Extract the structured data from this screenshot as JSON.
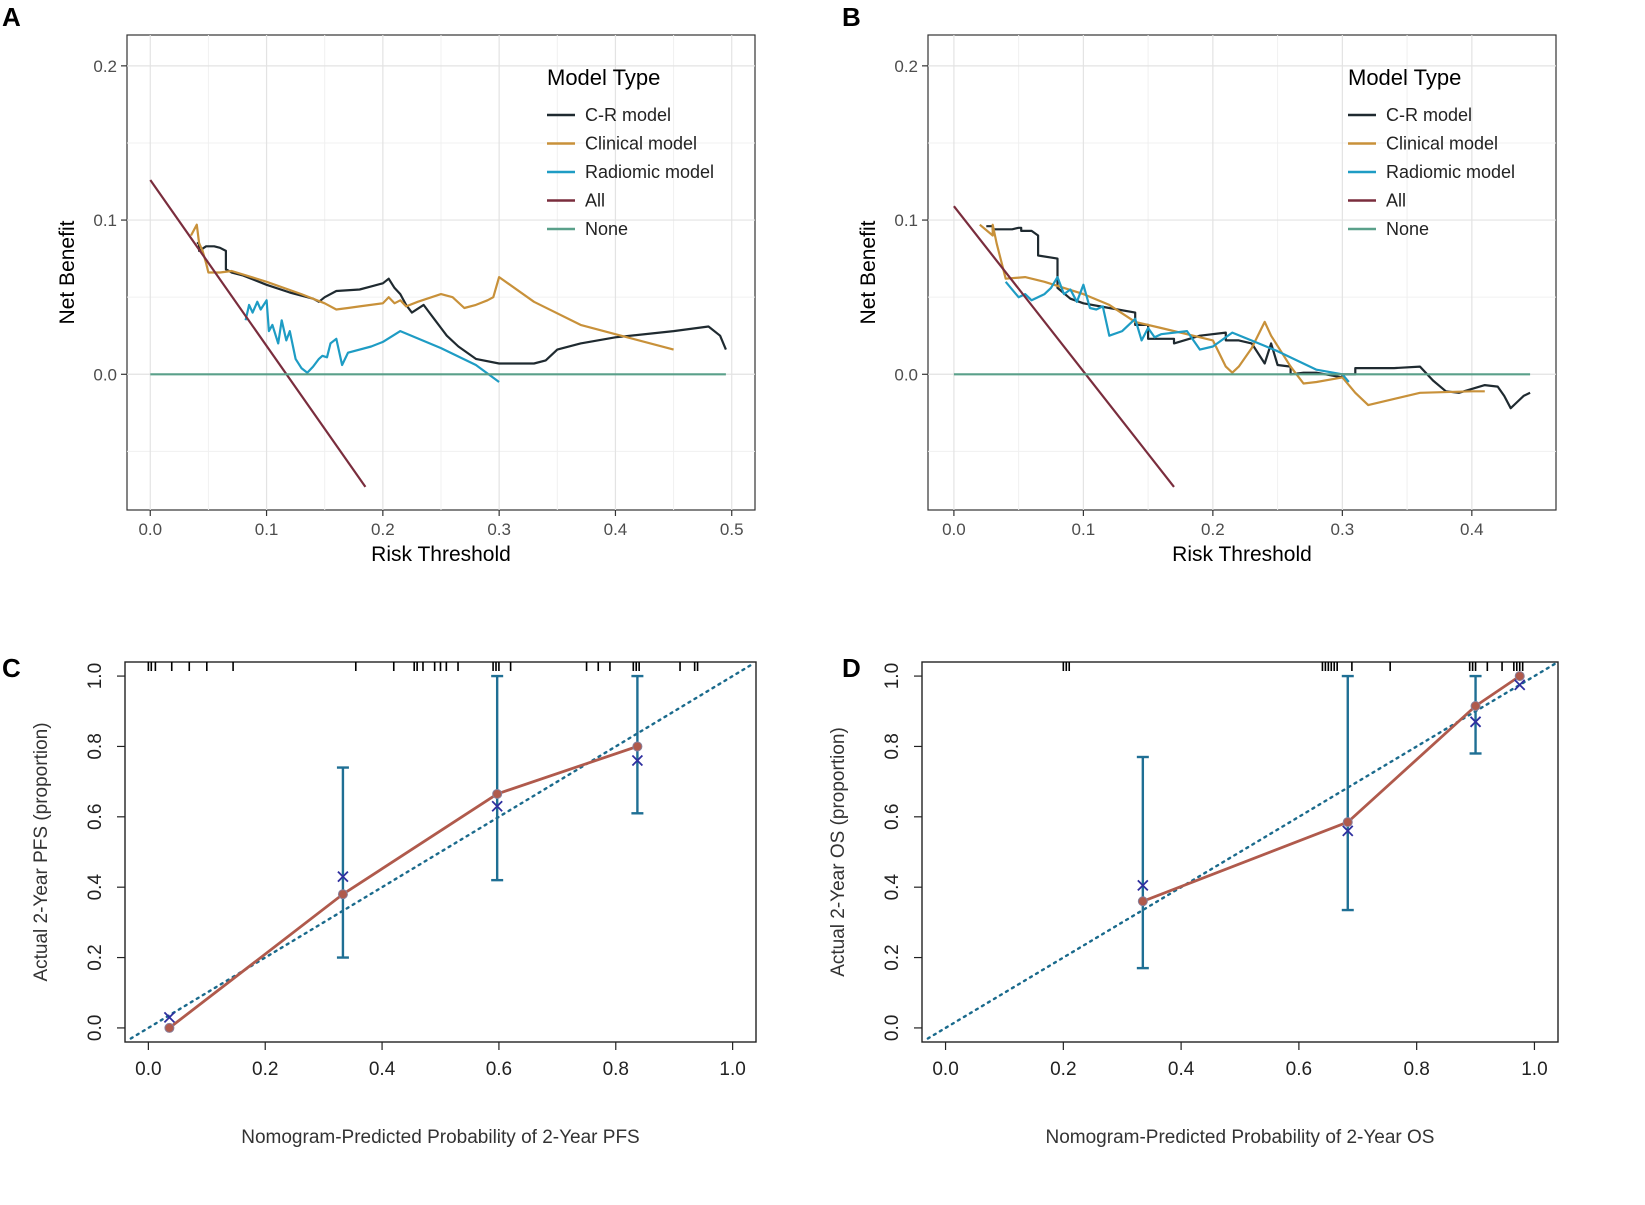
{
  "chart_data": [
    {
      "panel": "A",
      "type": "line",
      "kind": "dca",
      "xlabel": "Risk Threshold",
      "ylabel": "Net Benefit",
      "xlim": [
        -0.02,
        0.52
      ],
      "ylim": [
        -0.088,
        0.22
      ],
      "xticks": [
        0.0,
        0.1,
        0.2,
        0.3,
        0.4,
        0.5
      ],
      "xtick_labels": [
        "0.0",
        "0.1",
        "0.2",
        "0.3",
        "0.4",
        "0.5"
      ],
      "yticks": [
        0.0,
        0.1,
        0.2
      ],
      "ytick_labels": [
        "0.0",
        "0.1",
        "0.2"
      ],
      "legend_title": "Model Type",
      "legend_position": "top-right",
      "series": [
        {
          "name": "C-R model",
          "color": "#1f2a30",
          "x": [
            0.04,
            0.042,
            0.042,
            0.048,
            0.055,
            0.06,
            0.065,
            0.065,
            0.07,
            0.08,
            0.1,
            0.12,
            0.14,
            0.145,
            0.15,
            0.16,
            0.18,
            0.19,
            0.2,
            0.205,
            0.21,
            0.215,
            0.22,
            0.225,
            0.235,
            0.24,
            0.245,
            0.25,
            0.255,
            0.265,
            0.28,
            0.3,
            0.33,
            0.34,
            0.35,
            0.37,
            0.4,
            0.45,
            0.48,
            0.49,
            0.495
          ],
          "y": [
            0.085,
            0.085,
            0.08,
            0.083,
            0.083,
            0.082,
            0.08,
            0.068,
            0.066,
            0.064,
            0.058,
            0.053,
            0.049,
            0.047,
            0.05,
            0.054,
            0.055,
            0.057,
            0.059,
            0.062,
            0.056,
            0.052,
            0.045,
            0.04,
            0.045,
            0.04,
            0.035,
            0.03,
            0.025,
            0.018,
            0.01,
            0.007,
            0.007,
            0.009,
            0.016,
            0.02,
            0.024,
            0.028,
            0.031,
            0.025,
            0.016
          ]
        },
        {
          "name": "Clinical model",
          "color": "#c8913a",
          "x": [
            0.035,
            0.04,
            0.042,
            0.045,
            0.048,
            0.05,
            0.055,
            0.06,
            0.07,
            0.1,
            0.13,
            0.15,
            0.16,
            0.17,
            0.18,
            0.2,
            0.205,
            0.21,
            0.215,
            0.22,
            0.23,
            0.25,
            0.26,
            0.27,
            0.28,
            0.29,
            0.295,
            0.3,
            0.33,
            0.37,
            0.4,
            0.45
          ],
          "y": [
            0.09,
            0.097,
            0.085,
            0.08,
            0.072,
            0.066,
            0.066,
            0.066,
            0.067,
            0.06,
            0.052,
            0.046,
            0.042,
            0.043,
            0.044,
            0.046,
            0.05,
            0.046,
            0.048,
            0.044,
            0.047,
            0.052,
            0.05,
            0.043,
            0.045,
            0.048,
            0.05,
            0.063,
            0.047,
            0.032,
            0.026,
            0.016
          ]
        },
        {
          "name": "Radiomic model",
          "color": "#1e9cc4",
          "x": [
            0.082,
            0.085,
            0.088,
            0.092,
            0.095,
            0.1,
            0.102,
            0.105,
            0.11,
            0.113,
            0.117,
            0.12,
            0.125,
            0.13,
            0.135,
            0.14,
            0.145,
            0.148,
            0.152,
            0.155,
            0.16,
            0.165,
            0.17,
            0.19,
            0.2,
            0.215,
            0.25,
            0.28,
            0.3
          ],
          "y": [
            0.035,
            0.045,
            0.04,
            0.047,
            0.042,
            0.048,
            0.028,
            0.032,
            0.02,
            0.035,
            0.022,
            0.028,
            0.01,
            0.004,
            0.001,
            0.005,
            0.01,
            0.012,
            0.011,
            0.02,
            0.023,
            0.006,
            0.014,
            0.018,
            0.021,
            0.028,
            0.017,
            0.006,
            -0.005
          ]
        },
        {
          "name": "All",
          "color": "#7a2d3d",
          "x": [
            0.0,
            0.185
          ],
          "y": [
            0.126,
            -0.073
          ]
        },
        {
          "name": "None",
          "color": "#5aa08a",
          "x": [
            0.0,
            0.495
          ],
          "y": [
            0.0,
            0.0
          ]
        }
      ]
    },
    {
      "panel": "B",
      "type": "line",
      "kind": "dca",
      "xlabel": "Risk Threshold",
      "ylabel": "Net Benefit",
      "xlim": [
        -0.02,
        0.465
      ],
      "ylim": [
        -0.088,
        0.22
      ],
      "xticks": [
        0.0,
        0.1,
        0.2,
        0.3,
        0.4
      ],
      "xtick_labels": [
        "0.0",
        "0.1",
        "0.2",
        "0.3",
        "0.4"
      ],
      "yticks": [
        0.0,
        0.1,
        0.2
      ],
      "ytick_labels": [
        "0.0",
        "0.1",
        "0.2"
      ],
      "legend_title": "Model Type",
      "legend_position": "top-right",
      "series": [
        {
          "name": "C-R model",
          "color": "#1f2a30",
          "x": [
            0.025,
            0.03,
            0.03,
            0.045,
            0.05,
            0.052,
            0.052,
            0.06,
            0.065,
            0.065,
            0.08,
            0.08,
            0.09,
            0.1,
            0.12,
            0.14,
            0.14,
            0.15,
            0.15,
            0.17,
            0.17,
            0.19,
            0.21,
            0.21,
            0.22,
            0.23,
            0.24,
            0.245,
            0.25,
            0.26,
            0.26,
            0.27,
            0.28,
            0.3,
            0.3,
            0.31,
            0.31,
            0.33,
            0.34,
            0.36,
            0.37,
            0.38,
            0.39,
            0.41,
            0.42,
            0.425,
            0.43,
            0.435,
            0.44,
            0.445
          ],
          "y": [
            0.096,
            0.096,
            0.094,
            0.094,
            0.095,
            0.095,
            0.093,
            0.093,
            0.09,
            0.077,
            0.075,
            0.056,
            0.049,
            0.046,
            0.043,
            0.04,
            0.032,
            0.032,
            0.023,
            0.023,
            0.02,
            0.025,
            0.027,
            0.022,
            0.022,
            0.02,
            0.007,
            0.02,
            0.006,
            0.005,
            0.0,
            0.001,
            0.001,
            -0.002,
            0.0,
            0.0,
            0.004,
            0.004,
            0.004,
            0.005,
            -0.004,
            -0.011,
            -0.012,
            -0.007,
            -0.008,
            -0.014,
            -0.022,
            -0.018,
            -0.014,
            -0.012
          ]
        },
        {
          "name": "Clinical model",
          "color": "#c8913a",
          "x": [
            0.02,
            0.03,
            0.03,
            0.033,
            0.04,
            0.055,
            0.07,
            0.1,
            0.12,
            0.14,
            0.16,
            0.18,
            0.2,
            0.21,
            0.215,
            0.22,
            0.23,
            0.24,
            0.245,
            0.26,
            0.27,
            0.28,
            0.3,
            0.31,
            0.32,
            0.36,
            0.4,
            0.41
          ],
          "y": [
            0.097,
            0.09,
            0.097,
            0.085,
            0.062,
            0.063,
            0.06,
            0.052,
            0.045,
            0.034,
            0.03,
            0.026,
            0.022,
            0.005,
            0.001,
            0.005,
            0.017,
            0.034,
            0.025,
            0.005,
            -0.006,
            -0.005,
            -0.002,
            -0.012,
            -0.02,
            -0.012,
            -0.011,
            -0.011
          ]
        },
        {
          "name": "Radiomic model",
          "color": "#1e9cc4",
          "x": [
            0.04,
            0.05,
            0.055,
            0.06,
            0.07,
            0.075,
            0.08,
            0.085,
            0.09,
            0.095,
            0.1,
            0.105,
            0.11,
            0.115,
            0.12,
            0.13,
            0.14,
            0.145,
            0.15,
            0.155,
            0.16,
            0.18,
            0.19,
            0.2,
            0.215,
            0.25,
            0.28,
            0.3,
            0.305
          ],
          "y": [
            0.06,
            0.05,
            0.052,
            0.048,
            0.052,
            0.056,
            0.063,
            0.052,
            0.055,
            0.047,
            0.058,
            0.043,
            0.042,
            0.044,
            0.025,
            0.028,
            0.036,
            0.022,
            0.03,
            0.024,
            0.026,
            0.028,
            0.016,
            0.018,
            0.027,
            0.015,
            0.003,
            0.0,
            -0.005
          ]
        },
        {
          "name": "All",
          "color": "#7a2d3d",
          "x": [
            0.0,
            0.17
          ],
          "y": [
            0.109,
            -0.073
          ]
        },
        {
          "name": "None",
          "color": "#5aa08a",
          "x": [
            0.0,
            0.445
          ],
          "y": [
            0.0,
            0.0
          ]
        }
      ]
    },
    {
      "panel": "C",
      "type": "line",
      "kind": "calibration",
      "xlabel": "Nomogram-Predicted Probability of 2-Year PFS",
      "ylabel": "Actual 2-Year PFS (proportion)",
      "xlim": [
        -0.04,
        1.04
      ],
      "ylim": [
        -0.04,
        1.04
      ],
      "xticks": [
        0.0,
        0.2,
        0.4,
        0.6,
        0.8,
        1.0
      ],
      "xtick_labels": [
        "0.0",
        "0.2",
        "0.4",
        "0.6",
        "0.8",
        "1.0"
      ],
      "yticks": [
        0.0,
        0.2,
        0.4,
        0.6,
        0.8,
        1.0
      ],
      "ytick_labels": [
        "0.0",
        "0.2",
        "0.4",
        "0.6",
        "0.8",
        "1.0"
      ],
      "calibration_points": {
        "x": [
          0.036,
          0.333,
          0.597,
          0.837
        ],
        "y": [
          0.0,
          0.38,
          0.665,
          0.8
        ]
      },
      "error_bars": {
        "x": [
          0.333,
          0.597,
          0.837
        ],
        "lower": [
          0.2,
          0.42,
          0.61
        ],
        "upper": [
          0.74,
          1.0,
          1.0
        ]
      },
      "bias_corrected": {
        "x": [
          0.036,
          0.333,
          0.597,
          0.837
        ],
        "y": [
          0.03,
          0.43,
          0.63,
          0.76
        ]
      },
      "rug": [
        0.0,
        0.005,
        0.012,
        0.04,
        0.07,
        0.1,
        0.145,
        0.355,
        0.42,
        0.455,
        0.46,
        0.47,
        0.49,
        0.5,
        0.51,
        0.53,
        0.59,
        0.595,
        0.6,
        0.62,
        0.75,
        0.77,
        0.79,
        0.83,
        0.835,
        0.84,
        0.91,
        0.935,
        0.94
      ],
      "colors": {
        "observed": "#b05a4c",
        "ideal": "#1a6a8c",
        "error": "#1f6f94",
        "corrected": "#2f2f9f"
      }
    },
    {
      "panel": "D",
      "type": "line",
      "kind": "calibration",
      "xlabel": "Nomogram-Predicted Probability of 2-Year OS",
      "ylabel": "Actual 2-Year OS (proportion)",
      "xlim": [
        -0.04,
        1.04
      ],
      "ylim": [
        -0.04,
        1.04
      ],
      "xticks": [
        0.0,
        0.2,
        0.4,
        0.6,
        0.8,
        1.0
      ],
      "xtick_labels": [
        "0.0",
        "0.2",
        "0.4",
        "0.6",
        "0.8",
        "1.0"
      ],
      "yticks": [
        0.0,
        0.2,
        0.4,
        0.6,
        0.8,
        1.0
      ],
      "ytick_labels": [
        "0.0",
        "0.2",
        "0.4",
        "0.6",
        "0.8",
        "1.0"
      ],
      "calibration_points": {
        "x": [
          0.335,
          0.683,
          0.9,
          0.975
        ],
        "y": [
          0.36,
          0.585,
          0.915,
          1.0
        ]
      },
      "error_bars": {
        "x": [
          0.335,
          0.683,
          0.9
        ],
        "lower": [
          0.17,
          0.335,
          0.78
        ],
        "upper": [
          0.77,
          1.0,
          1.0
        ]
      },
      "bias_corrected": {
        "x": [
          0.335,
          0.683,
          0.9,
          0.975
        ],
        "y": [
          0.405,
          0.56,
          0.87,
          0.975
        ]
      },
      "rug": [
        0.2,
        0.205,
        0.21,
        0.64,
        0.645,
        0.65,
        0.655,
        0.66,
        0.665,
        0.69,
        0.755,
        0.89,
        0.895,
        0.9,
        0.92,
        0.945,
        0.965,
        0.97,
        0.975,
        0.98
      ],
      "colors": {
        "observed": "#b05a4c",
        "ideal": "#1a6a8c",
        "error": "#1f6f94",
        "corrected": "#2f2f9f"
      }
    }
  ]
}
